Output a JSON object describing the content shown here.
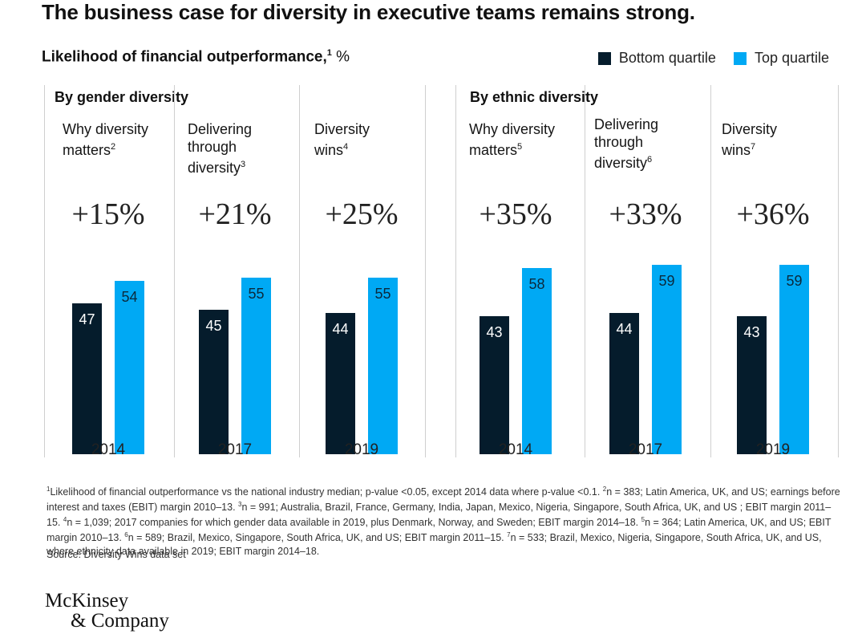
{
  "title": "The business case for diversity in executive teams remains strong.",
  "subtitle": {
    "text": "Likelihood of financial outperformance,",
    "sup": "1",
    "unit": " %"
  },
  "legend": [
    {
      "label": "Bottom quartile",
      "color": "#051c2c"
    },
    {
      "label": "Top quartile",
      "color": "#00a9f4"
    }
  ],
  "groups": [
    {
      "title": "By gender diversity"
    },
    {
      "title": "By ethnic diversity"
    }
  ],
  "chart_data": {
    "type": "bar",
    "title": "Likelihood of financial outperformance, %",
    "ylim": [
      0,
      70
    ],
    "grid": false,
    "legend_position": "top-right",
    "series_names": [
      "Bottom quartile",
      "Top quartile"
    ],
    "colors": {
      "bottom": "#051c2c",
      "top": "#00a9f4"
    },
    "panels": [
      {
        "group": "By gender diversity",
        "label_lines": [
          "Why diversity",
          "matters"
        ],
        "sup": "2",
        "uplift": "+15%",
        "year": "2014",
        "bottom": 47,
        "top": 54
      },
      {
        "group": "By gender diversity",
        "label_lines": [
          "Delivering",
          "through",
          "diversity"
        ],
        "sup": "3",
        "uplift": "+21%",
        "year": "2017",
        "bottom": 45,
        "top": 55
      },
      {
        "group": "By gender diversity",
        "label_lines": [
          "Diversity",
          "wins"
        ],
        "sup": "4",
        "uplift": "+25%",
        "year": "2019",
        "bottom": 44,
        "top": 55
      },
      {
        "group": "By ethnic diversity",
        "label_lines": [
          "Why diversity",
          "matters"
        ],
        "sup": "5",
        "uplift": "+35%",
        "year": "2014",
        "bottom": 43,
        "top": 58
      },
      {
        "group": "By ethnic diversity",
        "label_lines": [
          "Delivering",
          "through",
          "diversity"
        ],
        "sup": "6",
        "uplift": "+33%",
        "year": "2017",
        "bottom": 44,
        "top": 59
      },
      {
        "group": "By ethnic diversity",
        "label_lines": [
          "Diversity",
          "wins"
        ],
        "sup": "7",
        "uplift": "+36%",
        "year": "2019",
        "bottom": 43,
        "top": 59
      }
    ]
  },
  "footnotes": [
    {
      "sup": "1",
      "text": "Likelihood of financial outperformance vs the national industry median; p-value <0.05, except 2014 data where p-value <0.1.  "
    },
    {
      "sup": "2",
      "text": "n = 383; Latin America, UK, and US; earnings before interest and taxes (EBIT) margin 2010–13. "
    },
    {
      "sup": "3",
      "text": "n = 991; Australia, Brazil, France, Germany, India, Japan, Mexico, Nigeria, Singapore, South Africa, UK, and US ; EBIT margin 2011–15. "
    },
    {
      "sup": "4",
      "text": "n = 1,039; 2017 companies for which gender data available in 2019, plus Denmark, Norway, and Sweden;  EBIT margin 2014–18. "
    },
    {
      "sup": "5",
      "text": "n = 364; Latin America, UK, and US; EBIT margin 2010–13. "
    },
    {
      "sup": "6",
      "text": "n = 589; Brazil, Mexico, Singapore, South Africa, UK, and US; EBIT margin 2011–15. "
    },
    {
      "sup": "7",
      "text": "n = 533; Brazil, Mexico, Nigeria, Singapore, South Africa, UK, and US, where ethnicity data available in 2019; EBIT margin 2014–18."
    }
  ],
  "source": "Source: Diversity Wins data set",
  "logo": {
    "line1": "McKinsey",
    "line2": "& Company"
  }
}
